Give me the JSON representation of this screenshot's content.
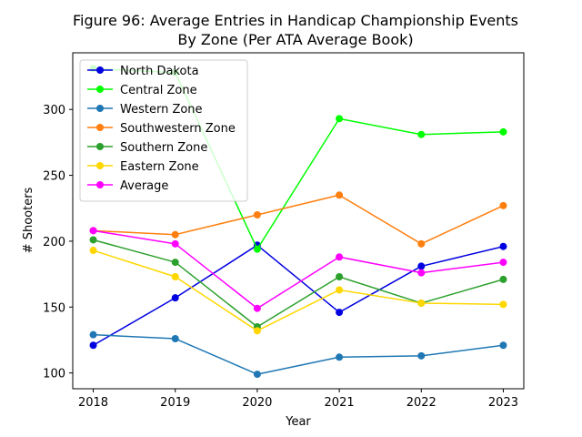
{
  "chart_data": {
    "type": "line",
    "title": "Figure 96: Average Entries in Handicap Championship Events",
    "subtitle": "By Zone (Per ATA Average Book)",
    "xlabel": "Year",
    "ylabel": "# Shooters",
    "x": [
      2018,
      2019,
      2020,
      2021,
      2022,
      2023
    ],
    "xticks": [
      "2018",
      "2019",
      "2020",
      "2021",
      "2022",
      "2023"
    ],
    "yticks": [
      "100",
      "150",
      "200",
      "250",
      "300"
    ],
    "xlim": [
      2017.75,
      2023.25
    ],
    "ylim": [
      88,
      343
    ],
    "grid": false,
    "legend_position": "top-left",
    "series": [
      {
        "name": "North Dakota",
        "color": "#0000e0",
        "values": [
          121,
          157,
          197,
          146,
          181,
          196
        ]
      },
      {
        "name": "Central Zone",
        "color": "#00ff00",
        "values": [
          331,
          328,
          194,
          293,
          281,
          283
        ]
      },
      {
        "name": "Western Zone",
        "color": "#1f77b4",
        "values": [
          129,
          126,
          99,
          112,
          113,
          121
        ]
      },
      {
        "name": "Southwestern Zone",
        "color": "#ff7f0e",
        "values": [
          208,
          205,
          220,
          235,
          198,
          227
        ]
      },
      {
        "name": "Southern Zone",
        "color": "#2ca02c",
        "values": [
          201,
          184,
          135,
          173,
          153,
          171
        ]
      },
      {
        "name": "Eastern Zone",
        "color": "#ffd700",
        "values": [
          193,
          173,
          132,
          163,
          153,
          152
        ]
      },
      {
        "name": "Average",
        "color": "#ff00ff",
        "values": [
          208,
          198,
          149,
          188,
          176,
          184
        ]
      }
    ]
  }
}
